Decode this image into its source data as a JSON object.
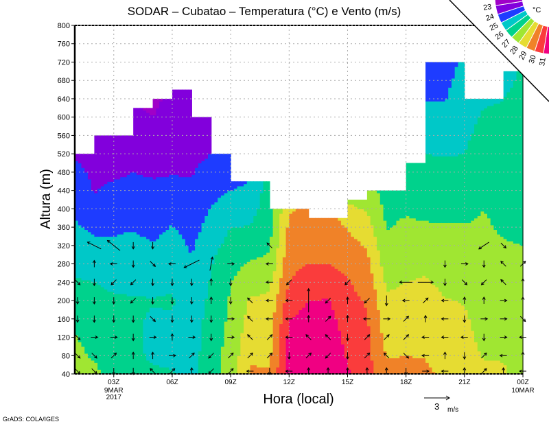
{
  "chart_data": {
    "type": "heatmap",
    "title": "SODAR – Cubatao – Temperatura (°C) e Vento (m/s)",
    "xlabel": "Hora (local)",
    "ylabel": "Altura (m)",
    "x_hours": [
      1,
      2,
      3,
      4,
      5,
      6,
      7,
      8,
      9,
      10,
      11,
      12,
      13,
      14,
      15,
      16,
      17,
      18,
      19,
      20,
      21,
      22,
      23,
      24
    ],
    "xlim": [
      1,
      24
    ],
    "ylim": [
      40,
      800
    ],
    "y_ticks": [
      40,
      80,
      120,
      160,
      200,
      240,
      280,
      320,
      360,
      400,
      440,
      480,
      520,
      560,
      600,
      640,
      680,
      720,
      760,
      800
    ],
    "x_ticks": [
      {
        "hour": 3,
        "label": "03Z",
        "sub": [
          "9MAR",
          "2017"
        ]
      },
      {
        "hour": 6,
        "label": "06Z",
        "sub": []
      },
      {
        "hour": 9,
        "label": "09Z",
        "sub": []
      },
      {
        "hour": 12,
        "label": "12Z",
        "sub": []
      },
      {
        "hour": 15,
        "label": "15Z",
        "sub": []
      },
      {
        "hour": 18,
        "label": "18Z",
        "sub": []
      },
      {
        "hour": 21,
        "label": "21Z",
        "sub": []
      },
      {
        "hour": 24,
        "label": "00Z",
        "sub": [
          "10MAR"
        ]
      }
    ],
    "grid": true,
    "heights": [
      40,
      80,
      120,
      160,
      200,
      240,
      280,
      320,
      360,
      400,
      440,
      480,
      520,
      560,
      600,
      640,
      680,
      720
    ],
    "temperature": [
      [
        27.3,
        27.2,
        27.05,
        26.8,
        26.45,
        26.1,
        25.8,
        25.45,
        25.15,
        24.85,
        24.6,
        24.3,
        23.9,
        23.8,
        23.6,
        23.5,
        23.4,
        23.3
      ],
      [
        27.3,
        26.9,
        26.7,
        26.45,
        26.2,
        26.0,
        25.6,
        25.2,
        24.8,
        24.35,
        23.95,
        23.8,
        23.55,
        23.3,
        23.2,
        23.1,
        23.1,
        23.1
      ],
      [
        26.5,
        26.4,
        26.3,
        26.2,
        26.1,
        25.85,
        25.5,
        25.15,
        24.85,
        24.5,
        24.2,
        23.85,
        23.6,
        23.3,
        23.2,
        23.1,
        23.1,
        23.1
      ],
      [
        26.4,
        26.3,
        26.25,
        26.15,
        26.05,
        25.85,
        25.55,
        25.25,
        24.95,
        24.6,
        24.3,
        24.0,
        23.75,
        23.5,
        23.2,
        23.0,
        22.9,
        22.9
      ],
      [
        26.2,
        25.8,
        25.7,
        25.9,
        26.05,
        25.75,
        25.4,
        25.05,
        24.75,
        24.45,
        24.2,
        23.9,
        23.6,
        23.3,
        23.0,
        22.8,
        22.7,
        22.6
      ],
      [
        26.1,
        25.7,
        25.6,
        25.9,
        26.1,
        25.85,
        25.6,
        25.35,
        25.05,
        24.65,
        24.25,
        23.95,
        23.75,
        23.6,
        23.4,
        23.25,
        23.1,
        23.0
      ],
      [
        25.6,
        25.6,
        25.55,
        25.5,
        25.35,
        25.2,
        25.05,
        24.9,
        24.65,
        24.4,
        24.15,
        23.95,
        23.75,
        23.55,
        23.4,
        23.3,
        23.2,
        23.1
      ],
      [
        26.7,
        26.6,
        26.5,
        26.35,
        26.25,
        26.1,
        25.95,
        25.65,
        25.35,
        25.05,
        24.7,
        24.35,
        24.0,
        23.8,
        23.7,
        23.6,
        23.5,
        23.4
      ],
      [
        27.4,
        27.35,
        27.3,
        27.2,
        27.1,
        27.0,
        26.7,
        26.35,
        26.0,
        25.5,
        25.0,
        24.5,
        24.2,
        24.0,
        23.9,
        23.8,
        23.7,
        23.6
      ],
      [
        29.1,
        28.9,
        28.6,
        28.35,
        28.1,
        27.6,
        27.1,
        26.6,
        26.05,
        25.6,
        25.2,
        24.9,
        24.7,
        24.5,
        24.4,
        24.3,
        24.2,
        24.1
      ],
      [
        29.1,
        28.8,
        28.7,
        28.5,
        28.2,
        27.8,
        27.2,
        26.9,
        26.7,
        26.6,
        26.5,
        26.4,
        26.3,
        26.2,
        26.1,
        26.0,
        26.0,
        26.0
      ],
      [
        31.5,
        31.35,
        31.2,
        31.0,
        30.55,
        30.0,
        29.75,
        29.45,
        29.2,
        28.9,
        28.6,
        28.4,
        28.2,
        28.0,
        27.9,
        27.8,
        27.7,
        27.6
      ],
      [
        32.0,
        31.8,
        31.5,
        31.25,
        31.0,
        30.5,
        30.0,
        29.7,
        29.4,
        29.2,
        29.0,
        28.8,
        28.6,
        28.4,
        28.2,
        28.0,
        27.9,
        27.8
      ],
      [
        32.0,
        31.8,
        31.6,
        31.35,
        31.05,
        30.55,
        30.0,
        29.75,
        29.5,
        29.3,
        29.1,
        28.9,
        28.7,
        28.5,
        28.3,
        28.1,
        28.0,
        27.9
      ],
      [
        31.1,
        30.9,
        30.7,
        30.5,
        30.3,
        30.1,
        29.75,
        29.35,
        28.95,
        28.2,
        27.6,
        27.3,
        27.1,
        26.9,
        26.8,
        26.7,
        26.6,
        26.5
      ],
      [
        30.4,
        30.3,
        30.2,
        30.1,
        29.9,
        29.6,
        29.25,
        28.9,
        28.4,
        27.9,
        27.5,
        27.2,
        27.0,
        26.8,
        26.7,
        26.6,
        26.5,
        26.4
      ],
      [
        29.2,
        28.95,
        28.7,
        28.4,
        28.15,
        27.85,
        27.55,
        27.25,
        26.95,
        26.8,
        26.6,
        26.5,
        26.4,
        26.3,
        26.2,
        26.1,
        26.0,
        25.9
      ],
      [
        29.3,
        29.0,
        28.75,
        28.5,
        28.25,
        28.0,
        27.7,
        27.45,
        27.15,
        26.9,
        26.75,
        26.6,
        26.5,
        26.4,
        26.3,
        26.2,
        26.1,
        26.0
      ],
      [
        29.2,
        28.95,
        28.75,
        28.55,
        28.35,
        28.1,
        27.85,
        27.45,
        27.1,
        26.8,
        26.55,
        26.3,
        26.0,
        25.65,
        25.3,
        24.95,
        24.6,
        24.3
      ],
      [
        28.8,
        28.6,
        28.45,
        28.25,
        28.05,
        27.8,
        27.55,
        27.3,
        27.05,
        26.8,
        26.5,
        26.2,
        25.95,
        25.6,
        25.25,
        24.95,
        24.8,
        24.6
      ],
      [
        28.4,
        28.3,
        28.2,
        28.1,
        27.95,
        27.75,
        27.5,
        27.3,
        27.05,
        26.8,
        26.55,
        26.3,
        26.0,
        25.85,
        25.65,
        25.5,
        25.35,
        25.2
      ],
      [
        28.2,
        27.95,
        27.8,
        27.7,
        27.55,
        27.45,
        27.35,
        27.25,
        27.1,
        27.0,
        26.85,
        26.6,
        26.45,
        26.3,
        26.1,
        25.9,
        25.8,
        25.7
      ],
      [
        28.1,
        27.95,
        27.8,
        27.65,
        27.5,
        27.35,
        27.2,
        27.05,
        26.9,
        26.75,
        26.6,
        26.5,
        26.4,
        26.25,
        26.1,
        26.0,
        25.8,
        25.7
      ],
      [
        27.7,
        27.6,
        27.5,
        27.4,
        27.35,
        27.25,
        27.1,
        27.0,
        26.9,
        26.8,
        26.7,
        26.6,
        26.5,
        26.4,
        26.3,
        26.25,
        26.15,
        26.1
      ]
    ],
    "data_top_height_per_interval": [
      520,
      560,
      560,
      620,
      640,
      660,
      600,
      520,
      460,
      460,
      400,
      400,
      380,
      380,
      420,
      440,
      440,
      500,
      720,
      720,
      640,
      640,
      700
    ],
    "wind_heights": [
      40,
      80,
      120,
      160,
      200,
      240,
      280,
      320
    ],
    "wind_uv": [
      [
        [
          0.6,
          -0.6
        ],
        [
          0.6,
          -0.6
        ],
        [
          0.6,
          -0.6
        ],
        [
          0,
          -0.8
        ],
        [
          0,
          -0.8
        ],
        [
          0.6,
          -0.6
        ],
        null,
        null
      ],
      [
        [
          0.6,
          -0.6
        ],
        [
          0.6,
          -0.6
        ],
        [
          0.8,
          0
        ],
        [
          0,
          -0.8
        ],
        [
          0,
          -0.8
        ],
        [
          0,
          -0.8
        ],
        [
          0,
          0.8
        ],
        [
          -1.6,
          0.8
        ]
      ],
      [
        [
          0,
          -0.8
        ],
        [
          0.6,
          0.6
        ],
        [
          0.8,
          0
        ],
        [
          0,
          -0.8
        ],
        [
          0,
          -0.8
        ],
        [
          -0.6,
          -0.6
        ],
        [
          -0.8,
          0
        ],
        [
          -1.5,
          1.2
        ]
      ],
      [
        [
          0,
          -0.8
        ],
        [
          0,
          0.8
        ],
        [
          0,
          -0.8
        ],
        [
          0,
          -0.8
        ],
        [
          -0.6,
          -0.6
        ],
        [
          -0.6,
          -0.6
        ],
        [
          0,
          -0.8
        ],
        [
          0,
          -0.8
        ]
      ],
      [
        [
          -0.6,
          0.6
        ],
        [
          0,
          0.8
        ],
        [
          0.8,
          0
        ],
        [
          0.6,
          -0.6
        ],
        [
          0,
          -0.8
        ],
        [
          0,
          -0.8
        ],
        [
          0.6,
          -0.6
        ],
        [
          0,
          -0.8
        ]
      ],
      [
        [
          0.6,
          0.6
        ],
        [
          0.8,
          0
        ],
        [
          0,
          0.8
        ],
        [
          0,
          -0.8
        ],
        [
          0,
          -0.8
        ],
        [
          0,
          -0.8
        ],
        [
          -0.8,
          0
        ],
        null
      ],
      [
        [
          0,
          0.8
        ],
        [
          0.6,
          0.6
        ],
        [
          0.8,
          0
        ],
        [
          0,
          -0.8
        ],
        [
          0,
          -0.8
        ],
        [
          0,
          -0.8
        ],
        [
          -1.8,
          -0.9
        ],
        null
      ],
      [
        [
          -0.6,
          -0.6
        ],
        [
          -0.6,
          -0.6
        ],
        [
          0,
          -0.8
        ],
        [
          0,
          -0.8
        ],
        [
          0,
          0.8
        ],
        [
          0,
          0.8
        ],
        [
          0.3,
          1.6
        ],
        null
      ],
      [
        [
          0.6,
          0.6
        ],
        [
          0.6,
          0.6
        ],
        [
          0.8,
          0
        ],
        [
          0.8,
          0
        ],
        [
          0,
          -0.8
        ],
        [
          0,
          -0.8
        ],
        [
          0.8,
          0
        ],
        null
      ],
      [
        [
          -0.8,
          0
        ],
        [
          0.6,
          0.6
        ],
        [
          -0.6,
          0.6
        ],
        [
          -0.6,
          0.6
        ],
        [
          -0.6,
          0.6
        ],
        null,
        null,
        null
      ],
      [
        [
          0,
          -0.8
        ],
        [
          0.6,
          0.6
        ],
        [
          0.6,
          0.6
        ],
        [
          -0.8,
          0
        ],
        [
          -0.8,
          0
        ],
        [
          -0.8,
          0
        ],
        [
          -0.8,
          0
        ],
        [
          -0.6,
          0.6
        ]
      ],
      [
        [
          -0.8,
          0
        ],
        [
          0,
          -0.8
        ],
        [
          -0.8,
          0
        ],
        [
          -0.8,
          0
        ],
        [
          -0.8,
          0
        ],
        [
          -0.6,
          -0.6
        ],
        null,
        null
      ],
      [
        [
          0,
          0.8
        ],
        [
          0.6,
          0.6
        ],
        [
          -0.6,
          0.6
        ],
        [
          0,
          0.8
        ],
        [
          0,
          2.8
        ],
        null,
        null,
        null
      ],
      [
        [
          0,
          0.8
        ],
        [
          -0.6,
          -0.6
        ],
        [
          -0.6,
          0.6
        ],
        [
          0.6,
          0.6
        ],
        [
          -0.6,
          -0.6
        ],
        null,
        null,
        null
      ],
      [
        [
          0,
          0.8
        ],
        [
          0,
          -0.8
        ],
        [
          0,
          -0.8
        ],
        [
          0,
          0.8
        ],
        [
          0,
          0.8
        ],
        [
          -0.6,
          -0.6
        ],
        null,
        null
      ],
      [
        [
          0,
          0.8
        ],
        [
          0.6,
          0.6
        ],
        [
          0.6,
          0.6
        ],
        [
          -0.8,
          0
        ],
        [
          -0.6,
          -0.6
        ],
        null,
        null,
        null
      ],
      [
        [
          0,
          0.8
        ],
        [
          -0.6,
          0.6
        ],
        [
          0.6,
          0.6
        ],
        [
          0.8,
          0
        ],
        [
          0,
          -1.2
        ],
        null,
        null,
        null
      ],
      [
        [
          0,
          -0.8
        ],
        [
          0.6,
          -0.6
        ],
        [
          0.6,
          0.6
        ],
        [
          0.6,
          0.6
        ],
        [
          -0.8,
          0
        ],
        [
          -1.5,
          0
        ],
        null,
        null
      ],
      [
        [
          0.8,
          0
        ],
        [
          -0.8,
          0
        ],
        [
          -0.8,
          0
        ],
        [
          0,
          0.8
        ],
        [
          0.6,
          0.6
        ],
        [
          1.8,
          0
        ],
        null,
        null
      ],
      [
        [
          -0.8,
          0
        ],
        [
          0,
          0.8
        ],
        [
          -0.8,
          0
        ],
        [
          -0.8,
          0
        ],
        [
          -0.8,
          0
        ],
        [
          0,
          -0.8
        ],
        [
          0,
          -0.8
        ],
        null
      ],
      [
        [
          0,
          0.8
        ],
        [
          0,
          -0.8
        ],
        [
          -0.8,
          0
        ],
        [
          0,
          -0.8
        ],
        [
          0,
          0.8
        ],
        [
          0.6,
          -0.6
        ],
        [
          0.8,
          0
        ],
        null
      ],
      [
        [
          0.6,
          0.6
        ],
        [
          0.6,
          0.6
        ],
        [
          0,
          -0.8
        ],
        [
          0.8,
          0
        ],
        [
          0,
          0.8
        ],
        [
          -0.6,
          -0.6
        ],
        [
          0,
          -0.8
        ],
        [
          -1.2,
          -0.8
        ]
      ],
      [
        [
          0,
          0.8
        ],
        [
          -0.8,
          0
        ],
        [
          0.8,
          0
        ],
        [
          0.8,
          0
        ],
        [
          0.8,
          0
        ],
        [
          -0.6,
          0.6
        ],
        [
          -0.6,
          0.6
        ],
        [
          0.6,
          -0.6
        ]
      ],
      [
        [
          -0.8,
          0
        ],
        [
          0,
          0.8
        ],
        [
          -0.8,
          0
        ],
        [
          0.6,
          -0.6
        ],
        [
          0,
          0.8
        ],
        [
          0,
          0.8
        ],
        [
          0.6,
          0.6
        ],
        null
      ]
    ],
    "reference_vector": {
      "value": "3",
      "unit": "m/s",
      "magnitude": 3
    },
    "legend": {
      "unit": "°C",
      "levels": [
        23,
        24,
        25,
        26,
        27,
        28,
        29,
        30,
        31
      ],
      "colors": [
        "#a000c8",
        "#8200dc",
        "#1e3cff",
        "#00c8c8",
        "#00d28c",
        "#a0e632",
        "#e6dc32",
        "#f08228",
        "#fa3c3c",
        "#f00082"
      ],
      "placement": "top-right"
    }
  },
  "footer": "GrADS: COLA/IGES"
}
